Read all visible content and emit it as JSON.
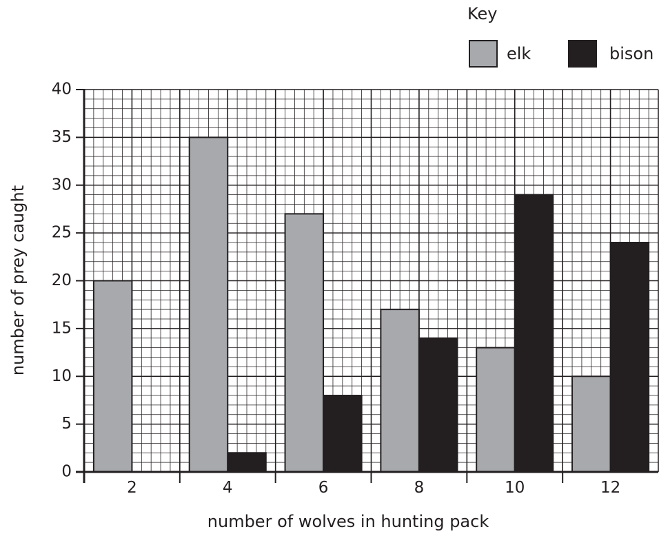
{
  "chart_data": {
    "type": "bar",
    "categories": [
      "2",
      "4",
      "6",
      "8",
      "10",
      "12"
    ],
    "series": [
      {
        "name": "elk",
        "values": [
          20,
          35,
          27,
          17,
          13,
          10
        ],
        "color": "#a7a9ac"
      },
      {
        "name": "bison",
        "values": [
          0,
          2,
          8,
          14,
          29,
          24
        ],
        "color": "#231f20"
      }
    ],
    "xlabel": "number of wolves in hunting pack",
    "ylabel": "number of prey caught",
    "ylim": [
      0,
      40
    ],
    "yticks": [
      "0",
      "5",
      "10",
      "15",
      "20",
      "25",
      "30",
      "35",
      "40"
    ],
    "key": {
      "title": "Key",
      "items": [
        "elk",
        "bison"
      ]
    },
    "grid": true,
    "legend_position": "top-right"
  }
}
